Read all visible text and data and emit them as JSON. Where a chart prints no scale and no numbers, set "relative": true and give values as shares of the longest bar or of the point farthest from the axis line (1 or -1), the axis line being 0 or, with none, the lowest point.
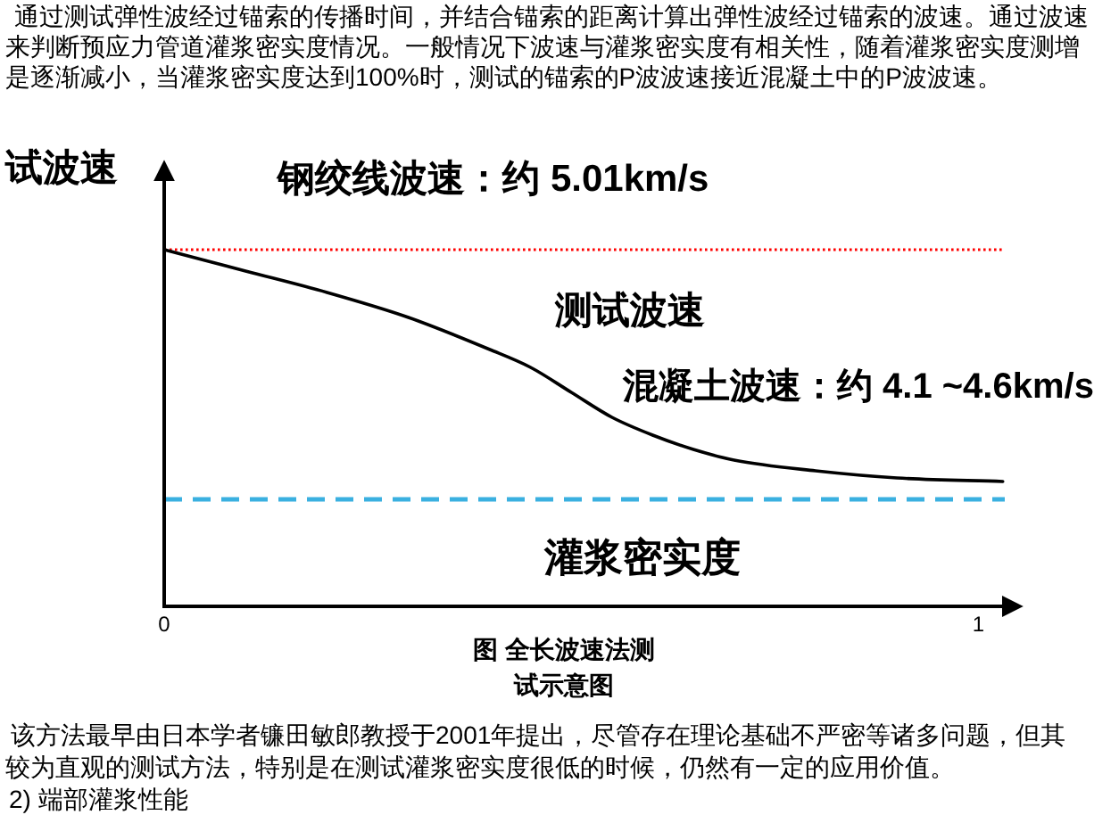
{
  "chart_data": {
    "type": "line",
    "relative": true,
    "title": "图 全长波速法测试示意图",
    "xlabel": "灌浆密实度",
    "ylabel": "试波速",
    "x": [
      0,
      0.1,
      0.2,
      0.3,
      0.4,
      0.45,
      0.5,
      0.55,
      0.6,
      0.65,
      0.7,
      0.8,
      0.9,
      1.03
    ],
    "series": [
      {
        "name": "测试波速",
        "color": "#000000",
        "values": [
          1,
          0.94,
          0.88,
          0.81,
          0.72,
          0.67,
          0.6,
          0.53,
          0.48,
          0.44,
          0.41,
          0.38,
          0.36,
          0.35
        ]
      }
    ],
    "xlim": [
      0,
      1.05
    ],
    "xticks": [
      0,
      1
    ],
    "ref_lines": [
      {
        "axis": "y",
        "value": 1,
        "label": "钢绞线波速：约 5.01km/s",
        "color": "#ff0000",
        "line_style": "dotted"
      },
      {
        "axis": "y",
        "value": 0.3,
        "label": "混凝土波速：约 4.1 ~4.6km/s",
        "color": "#3ab0e0",
        "line_style": "dashed"
      }
    ],
    "annotations": [
      "通过测试弹性波经过锚索的传播时间，并结合锚索的距离计算出弹性波经过锚索的波速。通过波速",
      "来判断预应力管道灌浆密实度情况。一般情况下波速与灌浆密实度有相关性，随着灌浆密实度测增",
      "是逐渐减小，当灌浆密实度达到100%时，测试的锚索的P波波速接近混凝土中的P波波速。",
      "该方法最早由日本学者镰田敏郎教授于2001年提出，尽管存在理论基础不严密等诸多问题，但其",
      "较为直观的测试方法，特别是在测试灌浆密实度很低的时候，仍然有一定的应用价值。",
      "2) 端部灌浆性能"
    ]
  }
}
